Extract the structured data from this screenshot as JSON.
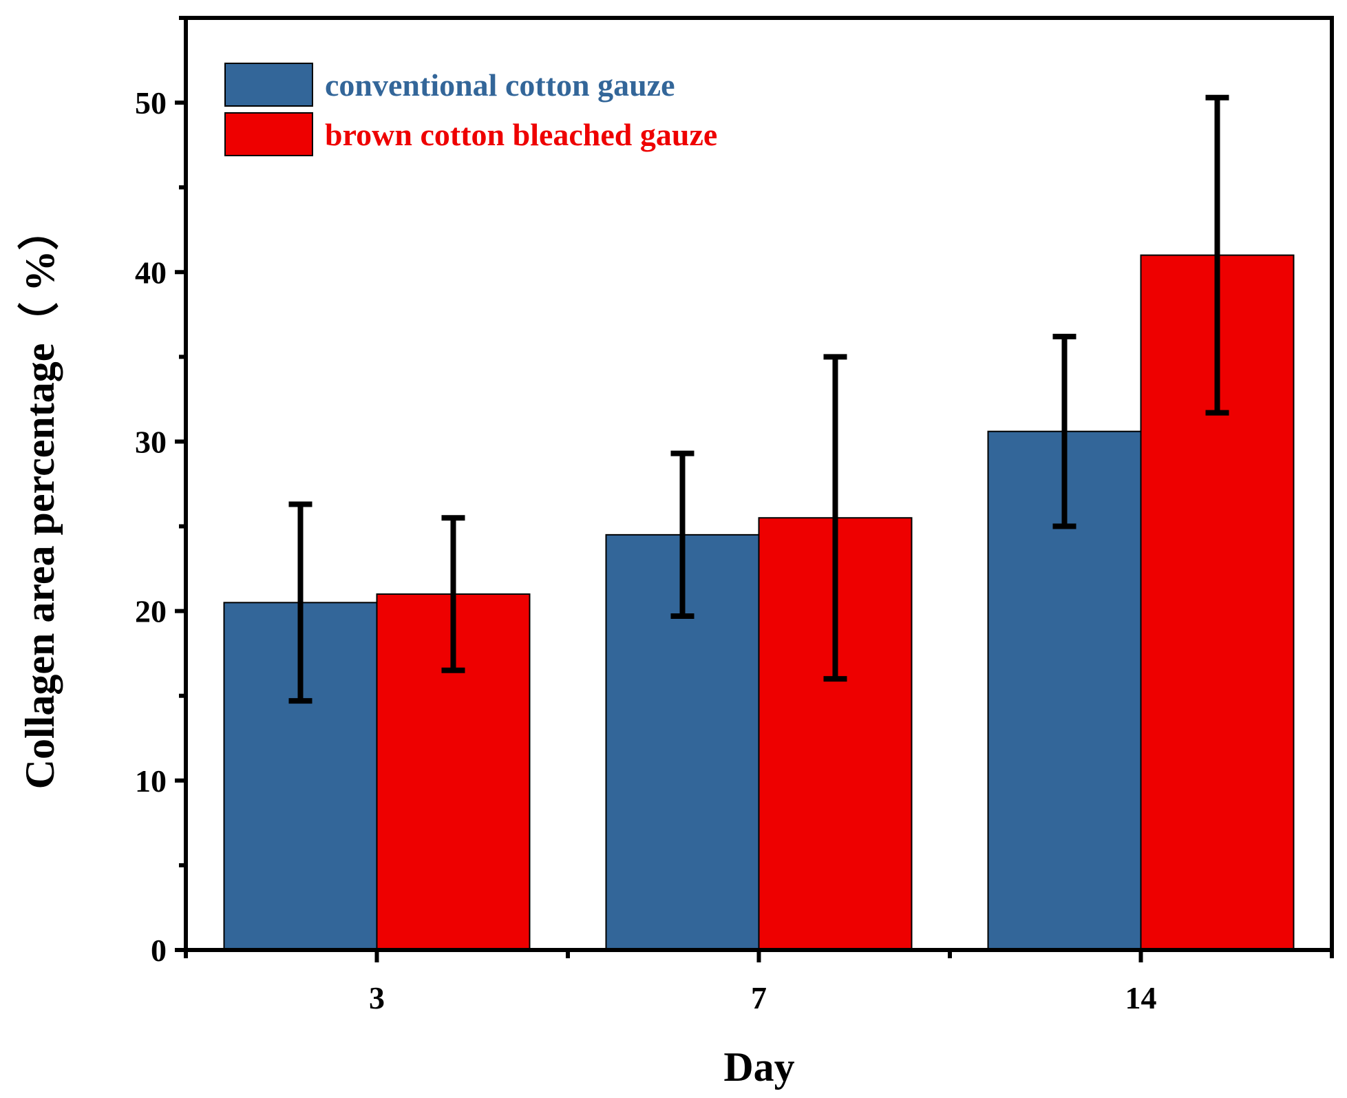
{
  "chart_data": {
    "type": "bar",
    "title": "",
    "xlabel": "Day",
    "ylabel": "Collagen area percentage（ %）",
    "categories": [
      "3",
      "7",
      "14"
    ],
    "ylim": [
      0,
      55
    ],
    "yticks": [
      0,
      10,
      20,
      30,
      40,
      50
    ],
    "grid": false,
    "legend_position": "top-left",
    "series": [
      {
        "name": "conventional cotton gauze",
        "color": "#336699",
        "values": [
          20.5,
          24.5,
          30.6
        ],
        "errors": [
          5.8,
          4.8,
          5.6
        ]
      },
      {
        "name": "brown cotton bleached gauze",
        "color": "#ee0000",
        "values": [
          21.0,
          25.5,
          41.0
        ],
        "errors": [
          4.5,
          9.5,
          9.3
        ]
      }
    ]
  }
}
